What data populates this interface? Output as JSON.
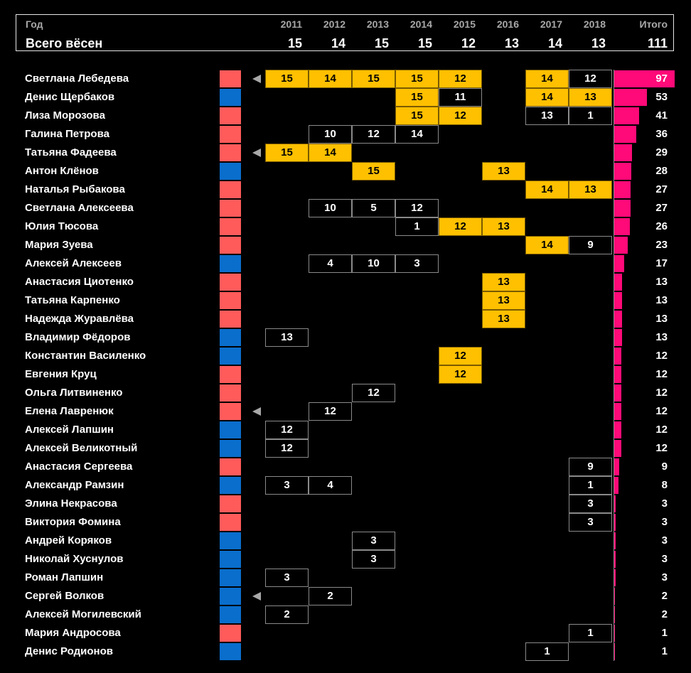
{
  "header": {
    "year_label": "Год",
    "count_label": "Всего вёсен",
    "total_label": "Итого",
    "grand_total": "111"
  },
  "chart_data": {
    "type": "table",
    "years": [
      "2011",
      "2012",
      "2013",
      "2014",
      "2015",
      "2016",
      "2017",
      "2018"
    ],
    "springs_per_year": [
      15,
      14,
      15,
      15,
      12,
      13,
      14,
      13
    ],
    "colors": {
      "female": "#ff5b5b",
      "male": "#0a6ecc",
      "winner": "#ffc000",
      "total_bar": "#ff0a78"
    },
    "rows": [
      {
        "name": "Светлана Лебедева",
        "gender": "f",
        "arrow": true,
        "values": [
          15,
          14,
          15,
          15,
          12,
          null,
          14,
          12
        ],
        "winner": [
          1,
          1,
          1,
          1,
          1,
          0,
          1,
          0
        ],
        "total": 97
      },
      {
        "name": "Денис Щербаков",
        "gender": "m",
        "arrow": false,
        "values": [
          null,
          null,
          null,
          15,
          11,
          null,
          14,
          13
        ],
        "winner": [
          0,
          0,
          0,
          1,
          0,
          0,
          1,
          1
        ],
        "total": 53
      },
      {
        "name": "Лиза Морозова",
        "gender": "f",
        "arrow": false,
        "values": [
          null,
          null,
          null,
          15,
          12,
          null,
          13,
          1
        ],
        "winner": [
          0,
          0,
          0,
          1,
          1,
          0,
          0,
          0
        ],
        "total": 41
      },
      {
        "name": "Галина Петрова",
        "gender": "f",
        "arrow": false,
        "values": [
          null,
          10,
          12,
          14,
          null,
          null,
          null,
          null
        ],
        "winner": [
          0,
          0,
          0,
          0,
          0,
          0,
          0,
          0
        ],
        "total": 36
      },
      {
        "name": "Татьяна Фадеева",
        "gender": "f",
        "arrow": true,
        "values": [
          15,
          14,
          null,
          null,
          null,
          null,
          null,
          null
        ],
        "winner": [
          1,
          1,
          0,
          0,
          0,
          0,
          0,
          0
        ],
        "total": 29
      },
      {
        "name": "Антон Клёнов",
        "gender": "m",
        "arrow": false,
        "values": [
          null,
          null,
          15,
          null,
          null,
          13,
          null,
          null
        ],
        "winner": [
          0,
          0,
          1,
          0,
          0,
          1,
          0,
          0
        ],
        "total": 28
      },
      {
        "name": "Наталья Рыбакова",
        "gender": "f",
        "arrow": false,
        "values": [
          null,
          null,
          null,
          null,
          null,
          null,
          14,
          13
        ],
        "winner": [
          0,
          0,
          0,
          0,
          0,
          0,
          1,
          1
        ],
        "total": 27
      },
      {
        "name": "Светлана Алексеева",
        "gender": "f",
        "arrow": false,
        "values": [
          null,
          10,
          5,
          12,
          null,
          null,
          null,
          null
        ],
        "winner": [
          0,
          0,
          0,
          0,
          0,
          0,
          0,
          0
        ],
        "total": 27
      },
      {
        "name": "Юлия Тюсова",
        "gender": "f",
        "arrow": false,
        "values": [
          null,
          null,
          null,
          1,
          12,
          13,
          null,
          null
        ],
        "winner": [
          0,
          0,
          0,
          0,
          1,
          1,
          0,
          0
        ],
        "total": 26
      },
      {
        "name": "Мария Зуева",
        "gender": "f",
        "arrow": false,
        "values": [
          null,
          null,
          null,
          null,
          null,
          null,
          14,
          9
        ],
        "winner": [
          0,
          0,
          0,
          0,
          0,
          0,
          1,
          0
        ],
        "total": 23
      },
      {
        "name": "Алексей Алексеев",
        "gender": "m",
        "arrow": false,
        "values": [
          null,
          4,
          10,
          3,
          null,
          null,
          null,
          null
        ],
        "winner": [
          0,
          0,
          0,
          0,
          0,
          0,
          0,
          0
        ],
        "total": 17
      },
      {
        "name": "Анастасия Циотенко",
        "gender": "f",
        "arrow": false,
        "values": [
          null,
          null,
          null,
          null,
          null,
          13,
          null,
          null
        ],
        "winner": [
          0,
          0,
          0,
          0,
          0,
          1,
          0,
          0
        ],
        "total": 13
      },
      {
        "name": "Татьяна Карпенко",
        "gender": "f",
        "arrow": false,
        "values": [
          null,
          null,
          null,
          null,
          null,
          13,
          null,
          null
        ],
        "winner": [
          0,
          0,
          0,
          0,
          0,
          1,
          0,
          0
        ],
        "total": 13
      },
      {
        "name": "Надежда Журавлёва",
        "gender": "f",
        "arrow": false,
        "values": [
          null,
          null,
          null,
          null,
          null,
          13,
          null,
          null
        ],
        "winner": [
          0,
          0,
          0,
          0,
          0,
          1,
          0,
          0
        ],
        "total": 13
      },
      {
        "name": "Владимир Фёдоров",
        "gender": "m",
        "arrow": false,
        "values": [
          13,
          null,
          null,
          null,
          null,
          null,
          null,
          null
        ],
        "winner": [
          0,
          0,
          0,
          0,
          0,
          0,
          0,
          0
        ],
        "total": 13
      },
      {
        "name": "Константин Василенко",
        "gender": "m",
        "arrow": false,
        "values": [
          null,
          null,
          null,
          null,
          12,
          null,
          null,
          null
        ],
        "winner": [
          0,
          0,
          0,
          0,
          1,
          0,
          0,
          0
        ],
        "total": 12
      },
      {
        "name": "Евгения Круц",
        "gender": "f",
        "arrow": false,
        "values": [
          null,
          null,
          null,
          null,
          12,
          null,
          null,
          null
        ],
        "winner": [
          0,
          0,
          0,
          0,
          1,
          0,
          0,
          0
        ],
        "total": 12
      },
      {
        "name": "Ольга Литвиненко",
        "gender": "f",
        "arrow": false,
        "values": [
          null,
          null,
          12,
          null,
          null,
          null,
          null,
          null
        ],
        "winner": [
          0,
          0,
          0,
          0,
          0,
          0,
          0,
          0
        ],
        "total": 12
      },
      {
        "name": "Елена Лавренюк",
        "gender": "f",
        "arrow": true,
        "values": [
          null,
          12,
          null,
          null,
          null,
          null,
          null,
          null
        ],
        "winner": [
          0,
          0,
          0,
          0,
          0,
          0,
          0,
          0
        ],
        "total": 12
      },
      {
        "name": "Алексей Лапшин",
        "gender": "m",
        "arrow": false,
        "values": [
          12,
          null,
          null,
          null,
          null,
          null,
          null,
          null
        ],
        "winner": [
          0,
          0,
          0,
          0,
          0,
          0,
          0,
          0
        ],
        "total": 12
      },
      {
        "name": "Алексей Великотный",
        "gender": "m",
        "arrow": false,
        "values": [
          12,
          null,
          null,
          null,
          null,
          null,
          null,
          null
        ],
        "winner": [
          0,
          0,
          0,
          0,
          0,
          0,
          0,
          0
        ],
        "total": 12
      },
      {
        "name": "Анастасия Сергеева",
        "gender": "f",
        "arrow": false,
        "values": [
          null,
          null,
          null,
          null,
          null,
          null,
          null,
          9
        ],
        "winner": [
          0,
          0,
          0,
          0,
          0,
          0,
          0,
          0
        ],
        "total": 9
      },
      {
        "name": "Александр Рамзин",
        "gender": "m",
        "arrow": false,
        "values": [
          3,
          4,
          null,
          null,
          null,
          null,
          null,
          1
        ],
        "winner": [
          0,
          0,
          0,
          0,
          0,
          0,
          0,
          0
        ],
        "total": 8
      },
      {
        "name": "Элина Некрасова",
        "gender": "f",
        "arrow": false,
        "values": [
          null,
          null,
          null,
          null,
          null,
          null,
          null,
          3
        ],
        "winner": [
          0,
          0,
          0,
          0,
          0,
          0,
          0,
          0
        ],
        "total": 3
      },
      {
        "name": "Виктория Фомина",
        "gender": "f",
        "arrow": false,
        "values": [
          null,
          null,
          null,
          null,
          null,
          null,
          null,
          3
        ],
        "winner": [
          0,
          0,
          0,
          0,
          0,
          0,
          0,
          0
        ],
        "total": 3
      },
      {
        "name": "Андрей Коряков",
        "gender": "m",
        "arrow": false,
        "values": [
          null,
          null,
          3,
          null,
          null,
          null,
          null,
          null
        ],
        "winner": [
          0,
          0,
          0,
          0,
          0,
          0,
          0,
          0
        ],
        "total": 3
      },
      {
        "name": "Николай Хуснулов",
        "gender": "m",
        "arrow": false,
        "values": [
          null,
          null,
          3,
          null,
          null,
          null,
          null,
          null
        ],
        "winner": [
          0,
          0,
          0,
          0,
          0,
          0,
          0,
          0
        ],
        "total": 3
      },
      {
        "name": "Роман Лапшин",
        "gender": "m",
        "arrow": false,
        "values": [
          3,
          null,
          null,
          null,
          null,
          null,
          null,
          null
        ],
        "winner": [
          0,
          0,
          0,
          0,
          0,
          0,
          0,
          0
        ],
        "total": 3
      },
      {
        "name": "Сергей Волков",
        "gender": "m",
        "arrow": true,
        "values": [
          null,
          2,
          null,
          null,
          null,
          null,
          null,
          null
        ],
        "winner": [
          0,
          0,
          0,
          0,
          0,
          0,
          0,
          0
        ],
        "total": 2
      },
      {
        "name": "Алексей Могилевский",
        "gender": "m",
        "arrow": false,
        "values": [
          2,
          null,
          null,
          null,
          null,
          null,
          null,
          null
        ],
        "winner": [
          0,
          0,
          0,
          0,
          0,
          0,
          0,
          0
        ],
        "total": 2
      },
      {
        "name": "Мария Андросова",
        "gender": "f",
        "arrow": false,
        "values": [
          null,
          null,
          null,
          null,
          null,
          null,
          null,
          1
        ],
        "winner": [
          0,
          0,
          0,
          0,
          0,
          0,
          0,
          0
        ],
        "total": 1
      },
      {
        "name": "Денис Родионов",
        "gender": "m",
        "arrow": false,
        "values": [
          null,
          null,
          null,
          null,
          null,
          null,
          1,
          null
        ],
        "winner": [
          0,
          0,
          0,
          0,
          0,
          0,
          0,
          0
        ],
        "total": 1
      }
    ]
  }
}
